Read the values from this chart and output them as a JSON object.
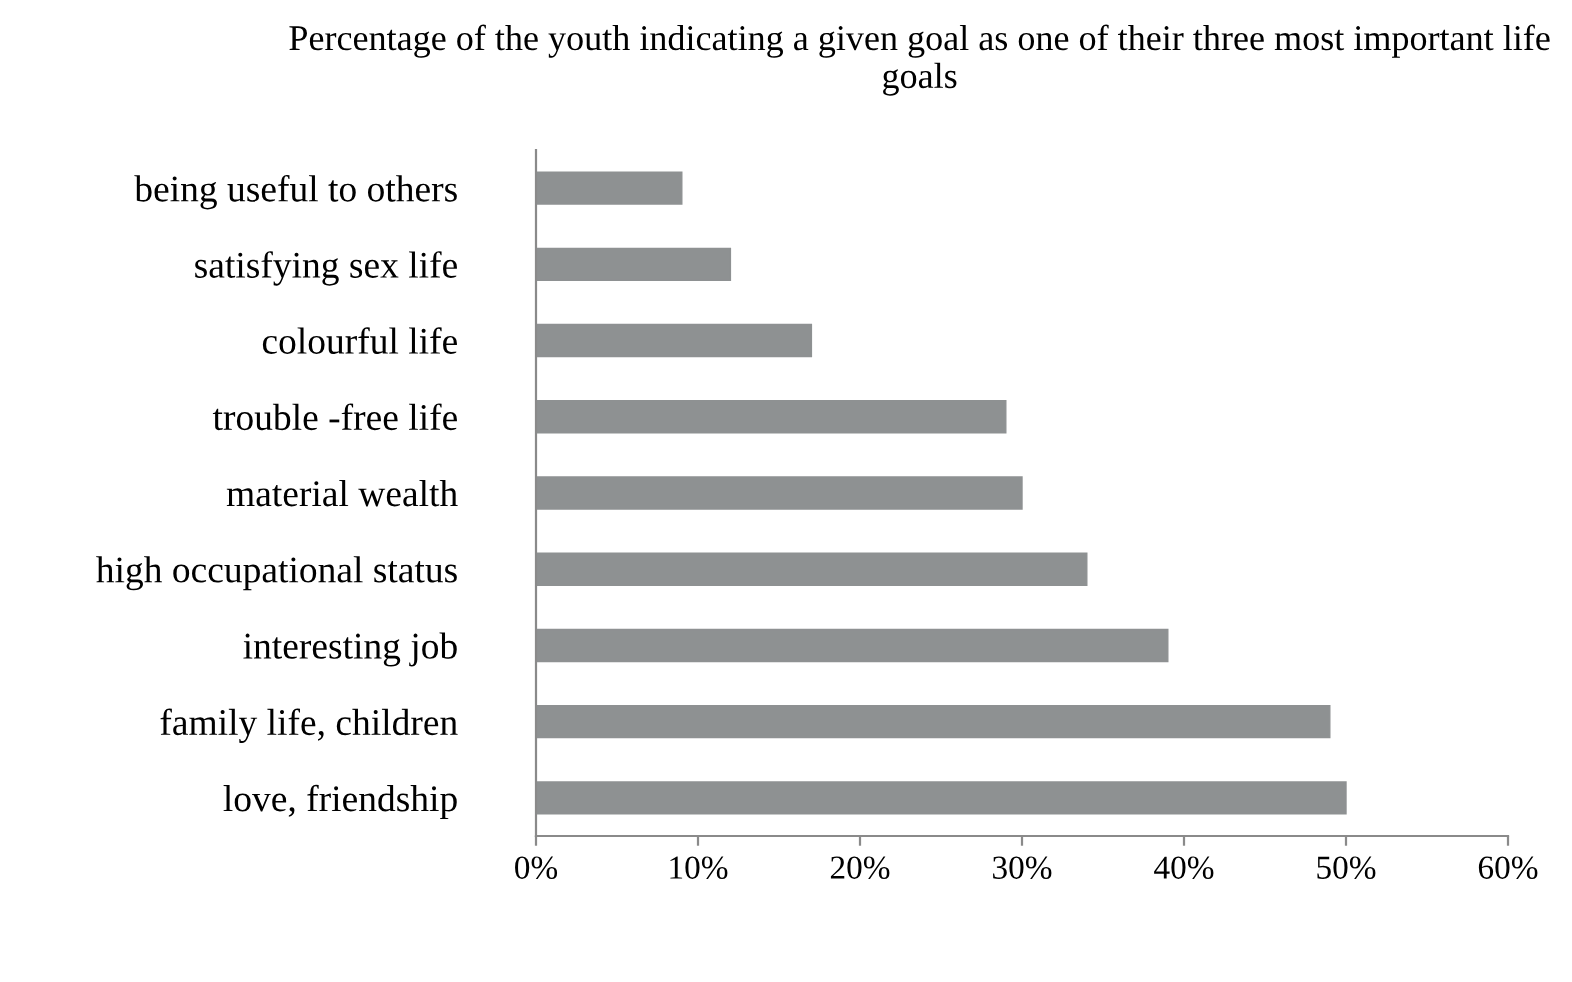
{
  "chart_data": {
    "type": "bar",
    "orientation": "horizontal",
    "title": "Percentage of the youth indicating a given goal as one of their three most important life goals",
    "categories": [
      "being useful to others",
      "satisfying sex life",
      "colourful life",
      "trouble -free life",
      "material wealth",
      "high occupational status",
      "interesting job",
      "family life, children",
      "love, friendship"
    ],
    "values": [
      9,
      12,
      17,
      29,
      30,
      34,
      39,
      49,
      50
    ],
    "color": "#8e9192",
    "xlim": [
      0,
      60
    ],
    "xticks": [
      {
        "value": 0,
        "label": "0%"
      },
      {
        "value": 10,
        "label": "10%"
      },
      {
        "value": 20,
        "label": "20%"
      },
      {
        "value": 30,
        "label": "30%"
      },
      {
        "value": 40,
        "label": "40%"
      },
      {
        "value": 50,
        "label": "50%"
      },
      {
        "value": 60,
        "label": "60%"
      }
    ],
    "grid": false,
    "legend": false
  }
}
